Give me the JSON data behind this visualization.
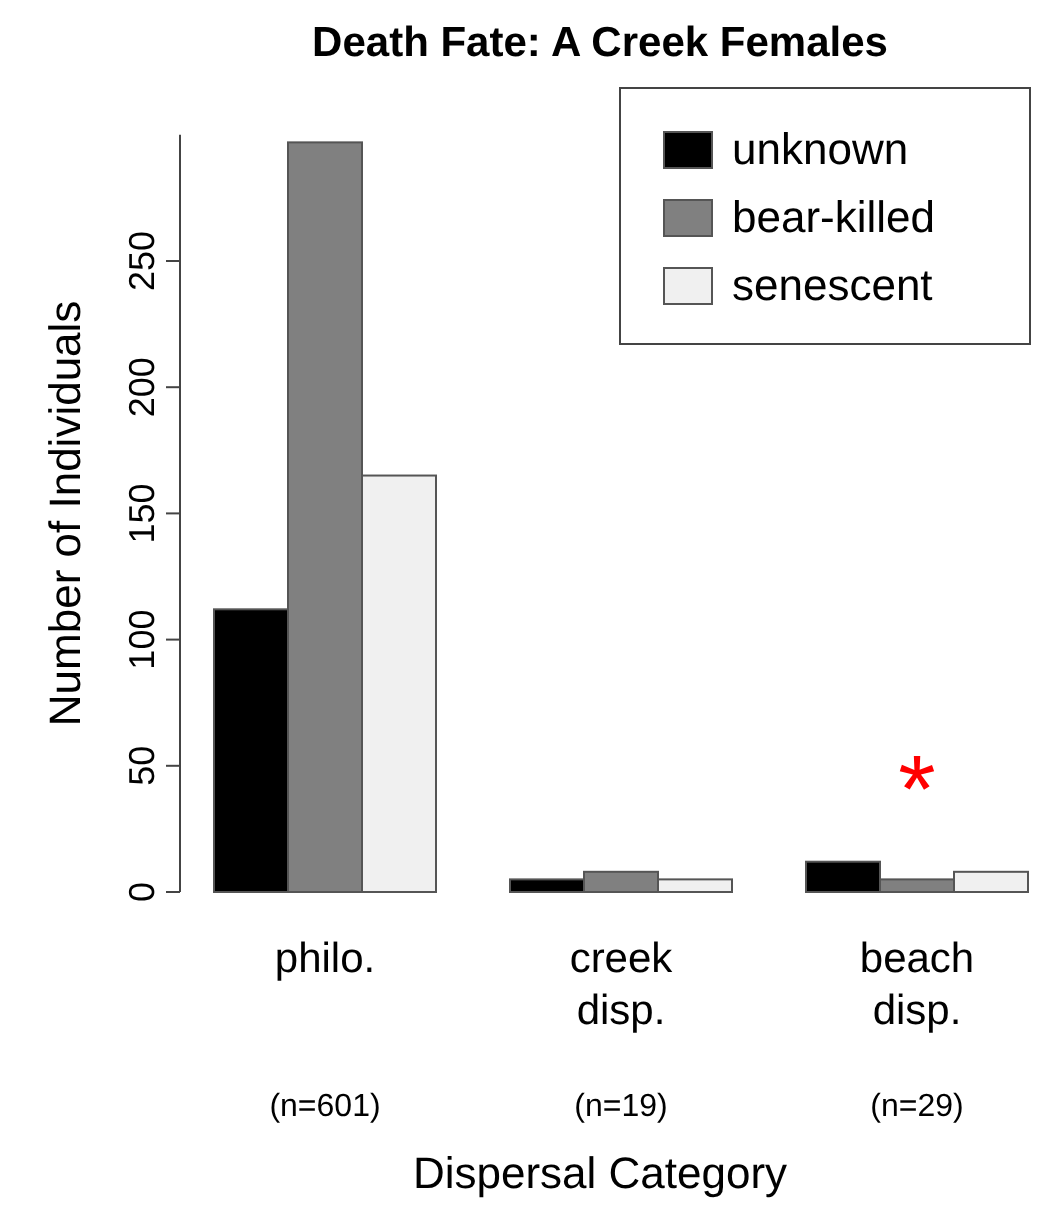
{
  "chart_data": {
    "type": "bar",
    "title": "Death Fate: A Creek Females",
    "xlabel": "Dispersal Category",
    "ylabel": "Number of Individuals",
    "categories": [
      "philo.",
      "creek\ndisp.",
      "beach\ndisp."
    ],
    "series": [
      {
        "name": "unknown",
        "color": "#000000",
        "values": [
          112,
          5,
          12
        ]
      },
      {
        "name": "bear-killed",
        "color": "#808080",
        "values": [
          297,
          8,
          5
        ]
      },
      {
        "name": "senescent",
        "color": "#f0f0f0",
        "values": [
          165,
          5,
          8
        ]
      }
    ],
    "ylim": [
      0,
      300
    ],
    "yticks": [
      0,
      50,
      100,
      150,
      200,
      250
    ],
    "grid": false,
    "legend": "top right",
    "annotations": [
      "(n=601)",
      "(n=19)",
      "(n=29)",
      "*"
    ]
  }
}
